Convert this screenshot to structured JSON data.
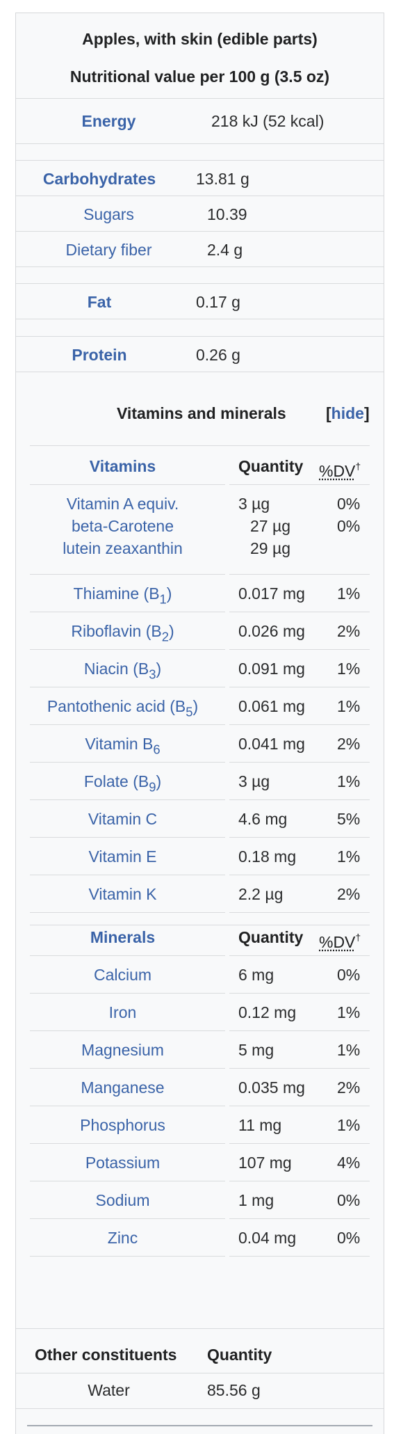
{
  "header": {
    "title": "Apples, with skin (edible parts)",
    "subtitle": "Nutritional value per 100 g (3.5 oz)"
  },
  "macros": {
    "energy": {
      "label": "Energy",
      "value": "218 kJ (52 kcal)"
    },
    "carbohydrates": {
      "label": "Carbohydrates",
      "value": "13.81 g"
    },
    "sugars": {
      "label": "Sugars",
      "value": "10.39"
    },
    "fiber": {
      "label": "Dietary fiber",
      "value": "2.4 g"
    },
    "fat": {
      "label": "Fat",
      "value": "0.17 g"
    },
    "protein": {
      "label": "Protein",
      "value": "0.26 g"
    }
  },
  "vitmin": {
    "title": "Vitamins and minerals",
    "hide_label": "hide",
    "bracket_open": "[",
    "bracket_close": "]"
  },
  "vitamins": {
    "header": {
      "name": "Vitamins",
      "qty": "Quantity",
      "dv": "%DV",
      "dagger": "†"
    },
    "vitamin_a": {
      "lines": [
        "Vitamin A equiv.",
        "beta-Carotene",
        "lutein zeaxanthin"
      ],
      "qty": [
        "3 µg",
        "27 µg",
        "29 µg"
      ],
      "dv": [
        "0%",
        "0%"
      ]
    },
    "items": [
      {
        "name": "Thiamine (B",
        "sub": "1",
        "close": ")",
        "qty": "0.017 mg",
        "dv": "1%"
      },
      {
        "name": "Riboflavin (B",
        "sub": "2",
        "close": ")",
        "qty": "0.026 mg",
        "dv": "2%"
      },
      {
        "name": "Niacin (B",
        "sub": "3",
        "close": ")",
        "qty": "0.091 mg",
        "dv": "1%"
      },
      {
        "name": "Pantothenic acid (B",
        "sub": "5",
        "close": ")",
        "qty": "0.061 mg",
        "dv": "1%"
      },
      {
        "name": "Vitamin B",
        "sub": "6",
        "close": "",
        "qty": "0.041 mg",
        "dv": "2%"
      },
      {
        "name": "Folate (B",
        "sub": "9",
        "close": ")",
        "qty": "3 µg",
        "dv": "1%"
      },
      {
        "name": "Vitamin C",
        "sub": "",
        "close": "",
        "qty": "4.6 mg",
        "dv": "5%"
      },
      {
        "name": "Vitamin E",
        "sub": "",
        "close": "",
        "qty": "0.18 mg",
        "dv": "1%"
      },
      {
        "name": "Vitamin K",
        "sub": "",
        "close": "",
        "qty": "2.2 µg",
        "dv": "2%"
      }
    ]
  },
  "minerals": {
    "header": {
      "name": "Minerals",
      "qty": "Quantity",
      "dv": "%DV",
      "dagger": "†"
    },
    "items": [
      {
        "name": "Calcium",
        "qty": "6 mg",
        "dv": "0%"
      },
      {
        "name": "Iron",
        "qty": "0.12 mg",
        "dv": "1%"
      },
      {
        "name": "Magnesium",
        "qty": "5 mg",
        "dv": "1%"
      },
      {
        "name": "Manganese",
        "qty": "0.035 mg",
        "dv": "2%"
      },
      {
        "name": "Phosphorus",
        "qty": "11 mg",
        "dv": "1%"
      },
      {
        "name": "Potassium",
        "qty": "107 mg",
        "dv": "4%"
      },
      {
        "name": "Sodium",
        "qty": "1 mg",
        "dv": "0%"
      },
      {
        "name": "Zinc",
        "qty": "0.04 mg",
        "dv": "0%"
      }
    ]
  },
  "other": {
    "header": {
      "name": "Other constituents",
      "qty": "Quantity"
    },
    "items": [
      {
        "name": "Water",
        "qty": "85.56 g"
      }
    ]
  },
  "colors": {
    "link": "#3a63a8",
    "background": "#f8f9fa",
    "border": "#d6d8da"
  }
}
